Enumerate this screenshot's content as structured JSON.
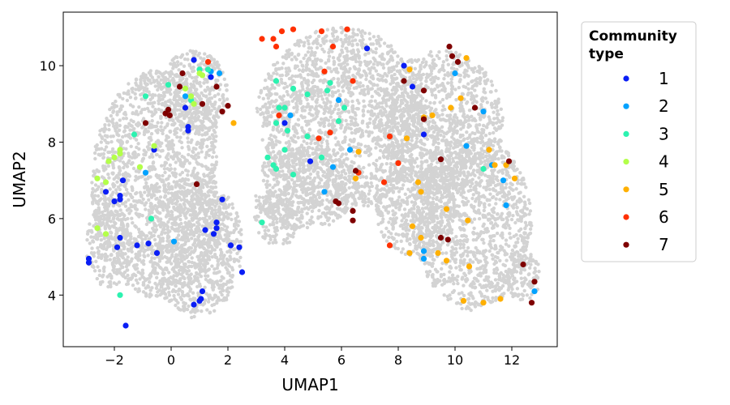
{
  "chart_data": {
    "type": "scatter",
    "title": "",
    "xlabel": "UMAP1",
    "ylabel": "UMAP2",
    "xlim": [
      -3.8,
      13.6
    ],
    "ylim": [
      2.65,
      11.4
    ],
    "xticks": [
      -2,
      0,
      2,
      4,
      6,
      8,
      10,
      12
    ],
    "xtick_labels": [
      "−2",
      "0",
      "2",
      "4",
      "6",
      "8",
      "10",
      "12"
    ],
    "yticks": [
      4,
      6,
      8,
      10
    ],
    "ytick_labels": [
      "4",
      "6",
      "8",
      "10"
    ],
    "grid": false,
    "legend": {
      "title_lines": [
        "Community",
        "type"
      ],
      "placement": "outside-right",
      "entries": [
        {
          "label": "1",
          "color": "#0a1ef5"
        },
        {
          "label": "2",
          "color": "#00a2ff"
        },
        {
          "label": "3",
          "color": "#2cf2b0"
        },
        {
          "label": "4",
          "color": "#b3ff4a"
        },
        {
          "label": "5",
          "color": "#ffb000"
        },
        {
          "label": "6",
          "color": "#ff3000"
        },
        {
          "label": "7",
          "color": "#7f0000"
        }
      ]
    },
    "background_cloud": {
      "color": "#d3d3d3",
      "description_regions": "dense grey cloud of cells behind colored points"
    },
    "series": [
      {
        "name": "1",
        "color": "#0a1ef5",
        "points": [
          [
            -2.9,
            4.95
          ],
          [
            -2.9,
            4.85
          ],
          [
            -2.3,
            6.7
          ],
          [
            -2.0,
            6.45
          ],
          [
            -1.8,
            6.5
          ],
          [
            -1.8,
            6.6
          ],
          [
            -1.7,
            7.0
          ],
          [
            -1.9,
            5.25
          ],
          [
            -1.8,
            5.5
          ],
          [
            -1.6,
            3.2
          ],
          [
            -1.2,
            5.3
          ],
          [
            -0.8,
            5.35
          ],
          [
            -0.5,
            5.1
          ],
          [
            -0.6,
            7.8
          ],
          [
            0.5,
            8.9
          ],
          [
            0.6,
            8.3
          ],
          [
            0.6,
            8.4
          ],
          [
            1.4,
            9.7
          ],
          [
            1.2,
            5.7
          ],
          [
            1.5,
            5.6
          ],
          [
            1.6,
            5.9
          ],
          [
            1.6,
            5.75
          ],
          [
            1.8,
            6.5
          ],
          [
            2.1,
            5.3
          ],
          [
            2.4,
            5.25
          ],
          [
            2.5,
            4.6
          ],
          [
            1.1,
            4.1
          ],
          [
            1.0,
            3.85
          ],
          [
            1.05,
            3.9
          ],
          [
            0.8,
            3.75
          ],
          [
            0.8,
            10.15
          ],
          [
            4.0,
            8.5
          ],
          [
            4.9,
            7.5
          ],
          [
            8.2,
            10.0
          ],
          [
            8.5,
            9.45
          ],
          [
            6.9,
            10.45
          ],
          [
            8.9,
            8.2
          ]
        ]
      },
      {
        "name": "2",
        "color": "#00a2ff",
        "points": [
          [
            0.1,
            5.4
          ],
          [
            0.5,
            9.2
          ],
          [
            1.4,
            9.85
          ],
          [
            1.7,
            9.8
          ],
          [
            4.2,
            8.7
          ],
          [
            5.4,
            6.7
          ],
          [
            5.7,
            7.35
          ],
          [
            5.9,
            9.1
          ],
          [
            6.3,
            7.8
          ],
          [
            8.9,
            5.15
          ],
          [
            8.9,
            4.95
          ],
          [
            10.0,
            9.8
          ],
          [
            10.4,
            7.9
          ],
          [
            11.0,
            8.8
          ],
          [
            11.3,
            7.4
          ],
          [
            11.7,
            7.0
          ],
          [
            11.8,
            6.35
          ],
          [
            12.8,
            4.1
          ],
          [
            -0.9,
            7.2
          ]
        ]
      },
      {
        "name": "3",
        "color": "#2cf2b0",
        "points": [
          [
            -1.3,
            8.2
          ],
          [
            -0.9,
            9.2
          ],
          [
            -0.1,
            9.5
          ],
          [
            0.7,
            9.1
          ],
          [
            1.0,
            9.9
          ],
          [
            1.3,
            9.9
          ],
          [
            -0.7,
            6.0
          ],
          [
            -1.8,
            4.0
          ],
          [
            3.2,
            5.9
          ],
          [
            3.4,
            7.6
          ],
          [
            3.6,
            7.4
          ],
          [
            3.7,
            7.3
          ],
          [
            3.7,
            8.5
          ],
          [
            3.8,
            8.9
          ],
          [
            4.0,
            8.9
          ],
          [
            4.1,
            8.3
          ],
          [
            4.3,
            9.4
          ],
          [
            4.8,
            9.25
          ],
          [
            4.8,
            8.15
          ],
          [
            4.3,
            7.15
          ],
          [
            4.0,
            7.8
          ],
          [
            5.5,
            9.35
          ],
          [
            5.6,
            9.55
          ],
          [
            5.9,
            8.55
          ],
          [
            6.1,
            8.9
          ],
          [
            5.3,
            7.6
          ],
          [
            11.0,
            7.3
          ],
          [
            3.7,
            9.6
          ]
        ]
      },
      {
        "name": "4",
        "color": "#b3ff4a",
        "points": [
          [
            -2.6,
            7.05
          ],
          [
            -2.3,
            6.95
          ],
          [
            -2.2,
            7.5
          ],
          [
            -2.0,
            7.6
          ],
          [
            -1.8,
            7.7
          ],
          [
            -1.8,
            7.8
          ],
          [
            -1.1,
            7.35
          ],
          [
            -2.6,
            5.75
          ],
          [
            -2.3,
            5.6
          ],
          [
            -0.6,
            7.9
          ],
          [
            0.5,
            9.4
          ],
          [
            0.7,
            9.2
          ],
          [
            0.8,
            9.0
          ],
          [
            1.0,
            9.8
          ],
          [
            1.1,
            9.75
          ]
        ]
      },
      {
        "name": "5",
        "color": "#ffb000",
        "points": [
          [
            2.2,
            8.5
          ],
          [
            6.5,
            7.05
          ],
          [
            6.6,
            7.75
          ],
          [
            8.3,
            8.1
          ],
          [
            8.4,
            9.9
          ],
          [
            8.5,
            5.8
          ],
          [
            8.7,
            6.95
          ],
          [
            8.8,
            6.7
          ],
          [
            8.8,
            5.5
          ],
          [
            8.9,
            8.65
          ],
          [
            9.2,
            8.7
          ],
          [
            9.4,
            5.1
          ],
          [
            9.7,
            4.9
          ],
          [
            9.7,
            6.25
          ],
          [
            9.85,
            8.9
          ],
          [
            10.2,
            9.15
          ],
          [
            10.3,
            3.85
          ],
          [
            10.45,
            5.95
          ],
          [
            10.5,
            4.75
          ],
          [
            11.0,
            3.8
          ],
          [
            11.2,
            7.8
          ],
          [
            11.4,
            7.4
          ],
          [
            11.6,
            3.9
          ],
          [
            11.8,
            7.4
          ],
          [
            12.1,
            7.05
          ],
          [
            10.4,
            10.2
          ],
          [
            8.4,
            5.1
          ]
        ]
      },
      {
        "name": "6",
        "color": "#ff3000",
        "points": [
          [
            1.3,
            10.1
          ],
          [
            3.2,
            10.7
          ],
          [
            3.6,
            10.7
          ],
          [
            3.7,
            10.5
          ],
          [
            3.9,
            10.9
          ],
          [
            4.3,
            10.95
          ],
          [
            5.3,
            10.9
          ],
          [
            6.2,
            10.95
          ],
          [
            5.4,
            9.85
          ],
          [
            5.7,
            10.5
          ],
          [
            6.4,
            9.6
          ],
          [
            5.6,
            8.25
          ],
          [
            5.2,
            8.1
          ],
          [
            6.6,
            7.2
          ],
          [
            7.5,
            6.95
          ],
          [
            7.7,
            8.15
          ],
          [
            7.7,
            5.3
          ],
          [
            8.0,
            7.45
          ],
          [
            3.8,
            8.7
          ]
        ]
      },
      {
        "name": "7",
        "color": "#7f0000",
        "points": [
          [
            -0.2,
            8.75
          ],
          [
            -0.1,
            8.85
          ],
          [
            0.3,
            9.45
          ],
          [
            0.4,
            9.8
          ],
          [
            1.1,
            9.0
          ],
          [
            1.6,
            9.45
          ],
          [
            1.8,
            8.8
          ],
          [
            2.0,
            8.95
          ],
          [
            0.9,
            6.9
          ],
          [
            -0.9,
            8.5
          ],
          [
            -0.05,
            8.7
          ],
          [
            5.8,
            6.45
          ],
          [
            5.9,
            6.4
          ],
          [
            6.4,
            6.2
          ],
          [
            6.4,
            5.95
          ],
          [
            6.5,
            7.25
          ],
          [
            8.2,
            9.6
          ],
          [
            8.9,
            9.35
          ],
          [
            8.9,
            8.6
          ],
          [
            9.5,
            7.55
          ],
          [
            9.5,
            5.5
          ],
          [
            9.75,
            5.45
          ],
          [
            9.8,
            10.5
          ],
          [
            9.9,
            10.25
          ],
          [
            10.1,
            10.1
          ],
          [
            10.7,
            8.9
          ],
          [
            11.9,
            7.5
          ],
          [
            12.4,
            4.8
          ],
          [
            12.7,
            3.8
          ],
          [
            12.8,
            4.35
          ]
        ]
      }
    ]
  }
}
